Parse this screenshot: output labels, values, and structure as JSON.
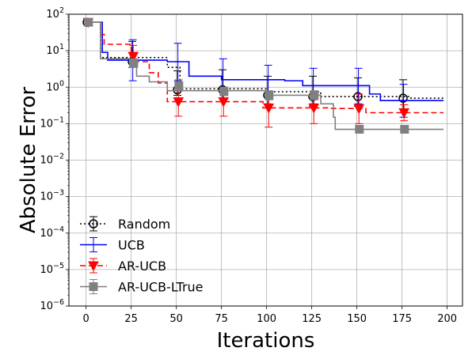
{
  "chart_data": {
    "type": "line",
    "xlabel": "Iterations",
    "ylabel": "Absolute Error",
    "yscale": "log",
    "xlim": [
      -9.5,
      208.5
    ],
    "ylim": [
      1e-06,
      100
    ],
    "xticks": [
      0,
      25,
      50,
      75,
      100,
      125,
      150,
      175,
      200
    ],
    "xtick_labels": [
      "0",
      "25",
      "50",
      "75",
      "100",
      "125",
      "150",
      "175",
      "200"
    ],
    "yticks": [
      1e-06,
      1e-05,
      0.0001,
      0.001,
      0.01,
      0.1,
      1.0,
      10.0,
      100.0
    ],
    "ytick_labels": [
      {
        "base": "10",
        "exp": "−6"
      },
      {
        "base": "10",
        "exp": "−5"
      },
      {
        "base": "10",
        "exp": "−4"
      },
      {
        "base": "10",
        "exp": "−3"
      },
      {
        "base": "10",
        "exp": "−2"
      },
      {
        "base": "10",
        "exp": "−1"
      },
      {
        "base": "10",
        "exp": "0"
      },
      {
        "base": "10",
        "exp": "1"
      },
      {
        "base": "10",
        "exp": "2"
      }
    ],
    "grid": true,
    "legend_position": "lower-left",
    "series": [
      {
        "name": "Random",
        "color": "#000000",
        "linestyle": "dotted",
        "marker": "circle-open",
        "line": [
          [
            0,
            60
          ],
          [
            8,
            60
          ],
          [
            8,
            6.5
          ],
          [
            25,
            6.5
          ],
          [
            45,
            6.5
          ],
          [
            45,
            3.5
          ],
          [
            52,
            3.5
          ],
          [
            52,
            0.9
          ],
          [
            100,
            0.9
          ],
          [
            100,
            0.75
          ],
          [
            130,
            0.75
          ],
          [
            130,
            0.55
          ],
          [
            180,
            0.55
          ],
          [
            180,
            0.5
          ],
          [
            198,
            0.5
          ]
        ],
        "markers": [
          {
            "x": 1,
            "y": 60,
            "err": [
              55,
              68
            ]
          },
          {
            "x": 26,
            "y": 5,
            "err": [
              3.5,
              18
            ]
          },
          {
            "x": 51,
            "y": 0.85,
            "err": [
              0.6,
              2.8
            ]
          },
          {
            "x": 76,
            "y": 0.85,
            "err": [
              0.5,
              3.0
            ]
          },
          {
            "x": 101,
            "y": 0.6,
            "err": [
              0.35,
              2.0
            ]
          },
          {
            "x": 126,
            "y": 0.55,
            "err": [
              0.3,
              2.0
            ]
          },
          {
            "x": 151,
            "y": 0.55,
            "err": [
              0.3,
              1.8
            ]
          },
          {
            "x": 176,
            "y": 0.5,
            "err": [
              0.25,
              1.6
            ]
          }
        ]
      },
      {
        "name": "UCB",
        "color": "#0000ff",
        "linestyle": "solid",
        "marker": "none",
        "line": [
          [
            0,
            60
          ],
          [
            9,
            60
          ],
          [
            9,
            9
          ],
          [
            12,
            9
          ],
          [
            12,
            5.5
          ],
          [
            45,
            5.5
          ],
          [
            45,
            5
          ],
          [
            57,
            5
          ],
          [
            57,
            2
          ],
          [
            75,
            2
          ],
          [
            75,
            1.6
          ],
          [
            110,
            1.6
          ],
          [
            110,
            1.5
          ],
          [
            120,
            1.5
          ],
          [
            120,
            1.1
          ],
          [
            157,
            1.1
          ],
          [
            157,
            0.65
          ],
          [
            163,
            0.65
          ],
          [
            163,
            0.43
          ],
          [
            198,
            0.43
          ]
        ],
        "markers": [
          {
            "x": 1,
            "y": 60,
            "err": [
              55,
              70
            ]
          },
          {
            "x": 26,
            "y": 5.5,
            "err": [
              1.5,
              20
            ]
          },
          {
            "x": 51,
            "y": 5,
            "err": [
              1.5,
              16
            ]
          },
          {
            "x": 76,
            "y": 1.6,
            "err": [
              0.5,
              6
            ]
          },
          {
            "x": 101,
            "y": 1.5,
            "err": [
              0.5,
              4
            ]
          },
          {
            "x": 126,
            "y": 1.1,
            "err": [
              0.35,
              3.3
            ]
          },
          {
            "x": 151,
            "y": 1.1,
            "err": [
              0.35,
              3.3
            ]
          },
          {
            "x": 176,
            "y": 0.43,
            "err": [
              0.15,
              1.2
            ]
          }
        ]
      },
      {
        "name": "AR-UCB",
        "color": "#ff0000",
        "linestyle": "dashed",
        "marker": "triangle-down",
        "line": [
          [
            0,
            60
          ],
          [
            8,
            60
          ],
          [
            8,
            28
          ],
          [
            10,
            28
          ],
          [
            10,
            15
          ],
          [
            25,
            15
          ],
          [
            25,
            7
          ],
          [
            28,
            7
          ],
          [
            28,
            5
          ],
          [
            35,
            5
          ],
          [
            35,
            2.5
          ],
          [
            40,
            2.5
          ],
          [
            40,
            1.3
          ],
          [
            45,
            1.3
          ],
          [
            45,
            0.4
          ],
          [
            98,
            0.4
          ],
          [
            98,
            0.27
          ],
          [
            135,
            0.27
          ],
          [
            135,
            0.26
          ],
          [
            155,
            0.26
          ],
          [
            155,
            0.2
          ],
          [
            198,
            0.2
          ]
        ],
        "markers": [
          {
            "x": 1,
            "y": 60,
            "err": [
              55,
              68
            ]
          },
          {
            "x": 26,
            "y": 7,
            "err": [
              4,
              14
            ]
          },
          {
            "x": 51,
            "y": 0.4,
            "err": [
              0.16,
              1.0
            ]
          },
          {
            "x": 76,
            "y": 0.4,
            "err": [
              0.16,
              0.9
            ]
          },
          {
            "x": 101,
            "y": 0.27,
            "err": [
              0.08,
              0.75
            ]
          },
          {
            "x": 126,
            "y": 0.27,
            "err": [
              0.1,
              0.7
            ]
          },
          {
            "x": 151,
            "y": 0.26,
            "err": [
              0.1,
              0.65
            ]
          },
          {
            "x": 176,
            "y": 0.2,
            "err": [
              0.12,
              0.33
            ]
          }
        ]
      },
      {
        "name": "AR-UCB-LTrue",
        "color": "#808080",
        "linestyle": "solid",
        "marker": "square",
        "line": [
          [
            0,
            60
          ],
          [
            8,
            60
          ],
          [
            8,
            6
          ],
          [
            25,
            6
          ],
          [
            25,
            4.5
          ],
          [
            28,
            4.5
          ],
          [
            28,
            2
          ],
          [
            35,
            2
          ],
          [
            35,
            1.4
          ],
          [
            45,
            1.4
          ],
          [
            45,
            0.8
          ],
          [
            100,
            0.8
          ],
          [
            100,
            0.6
          ],
          [
            130,
            0.6
          ],
          [
            130,
            0.35
          ],
          [
            137,
            0.35
          ],
          [
            137,
            0.15
          ],
          [
            138,
            0.15
          ],
          [
            138,
            0.07
          ],
          [
            198,
            0.07
          ]
        ],
        "markers": [
          {
            "x": 1,
            "y": 60,
            "err": [
              55,
              68
            ]
          },
          {
            "x": 26,
            "y": 4.5,
            "err": [
              3.5,
              6
            ]
          },
          {
            "x": 51,
            "y": 1.1,
            "err": [
              0.8,
              1.6
            ]
          },
          {
            "x": 76,
            "y": 0.75,
            "err": [
              0.6,
              1.0
            ]
          },
          {
            "x": 101,
            "y": 0.6,
            "err": [
              0.45,
              0.8
            ]
          },
          {
            "x": 126,
            "y": 0.6,
            "err": [
              0.45,
              0.8
            ]
          },
          {
            "x": 151,
            "y": 0.07,
            "err": [
              0.065,
              0.075
            ]
          },
          {
            "x": 176,
            "y": 0.07,
            "err": [
              0.065,
              0.075
            ]
          }
        ]
      }
    ]
  }
}
